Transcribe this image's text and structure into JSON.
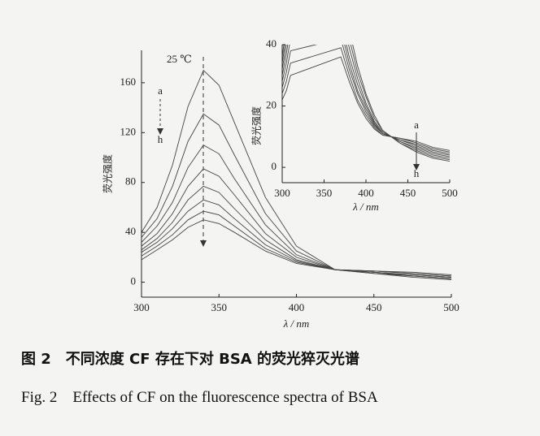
{
  "chart_data": [
    {
      "type": "line",
      "x_label": "λ / nm",
      "y_label": "荧光强度",
      "annotations": [
        "25 ℃",
        "a",
        "h"
      ],
      "x": [
        300,
        310,
        320,
        330,
        340,
        350,
        360,
        380,
        400,
        425,
        450,
        475,
        500
      ],
      "xlim": [
        300,
        500
      ],
      "xticks": [
        300,
        350,
        400,
        450,
        500
      ],
      "ylim": [
        -12,
        186
      ],
      "yticks": [
        0,
        40,
        80,
        120,
        160
      ],
      "series": [
        {
          "color": "#444",
          "values": [
            40,
            60,
            94,
            141,
            170,
            158,
            128,
            68,
            29,
            10,
            7,
            4,
            2
          ]
        },
        {
          "color": "#444",
          "values": [
            36,
            51,
            77,
            113,
            135,
            126,
            102,
            55,
            25,
            10,
            7,
            5,
            3
          ]
        },
        {
          "color": "#444",
          "values": [
            32,
            45,
            64,
            92,
            110,
            103,
            83,
            46,
            22,
            10,
            8,
            5,
            3
          ]
        },
        {
          "color": "#444",
          "values": [
            29,
            39,
            55,
            77,
            91,
            85,
            70,
            39,
            20,
            10,
            8,
            6,
            4
          ]
        },
        {
          "color": "#444",
          "values": [
            26,
            35,
            48,
            66,
            77,
            72,
            59,
            34,
            18,
            10,
            8,
            6,
            4
          ]
        },
        {
          "color": "#444",
          "values": [
            24,
            32,
            43,
            57,
            66,
            62,
            51,
            30,
            17,
            10,
            9,
            7,
            5
          ]
        },
        {
          "color": "#444",
          "values": [
            21,
            29,
            38,
            50,
            57,
            54,
            45,
            27,
            16,
            10,
            9,
            7,
            5
          ]
        },
        {
          "color": "#444",
          "values": [
            18,
            26,
            34,
            44,
            50,
            47,
            40,
            25,
            15,
            10,
            9,
            8,
            6
          ]
        }
      ]
    },
    {
      "type": "line",
      "x_label": "λ / nm",
      "y_label": "荧光强度",
      "annotations": [
        "a",
        "h"
      ],
      "x": [
        300,
        305,
        310,
        370,
        380,
        390,
        400,
        410,
        420,
        430,
        440,
        460,
        480,
        500
      ],
      "xlim": [
        300,
        500
      ],
      "xticks": [
        300,
        350,
        400,
        450,
        500
      ],
      "ylim": [
        -5,
        40
      ],
      "yticks": [
        0,
        20,
        40
      ],
      "series": [
        {
          "color": "#444",
          "values": [
            36,
            46,
            58,
            60,
            45,
            33,
            24,
            17,
            12,
            10,
            8,
            5,
            3,
            2
          ]
        },
        {
          "color": "#444",
          "values": [
            34,
            43,
            54,
            56,
            42,
            31,
            23,
            16,
            12,
            10,
            8,
            5.5,
            3.5,
            2.5
          ]
        },
        {
          "color": "#444",
          "values": [
            32,
            40,
            50,
            52,
            39,
            29,
            21,
            15,
            11.5,
            10,
            8.5,
            6,
            4,
            3
          ]
        },
        {
          "color": "#444",
          "values": [
            30,
            37,
            46,
            48,
            36,
            27,
            20,
            14.5,
            11,
            10,
            8.5,
            6.5,
            4.5,
            3.5
          ]
        },
        {
          "color": "#444",
          "values": [
            28,
            34,
            42,
            45,
            34,
            25,
            19,
            14,
            11,
            10,
            9,
            7,
            5,
            4
          ]
        },
        {
          "color": "#444",
          "values": [
            26,
            31,
            38,
            42,
            32,
            24,
            18,
            13.5,
            11,
            10,
            9,
            7.5,
            5.5,
            4.5
          ]
        },
        {
          "color": "#444",
          "values": [
            24,
            28,
            34,
            39,
            30,
            22,
            17,
            13,
            10.5,
            10,
            9.5,
            8,
            6,
            5
          ]
        },
        {
          "color": "#444",
          "values": [
            22,
            25,
            30,
            36,
            28,
            21,
            16,
            12.5,
            10.5,
            10,
            9.5,
            8.5,
            6.5,
            5.5
          ]
        }
      ]
    }
  ],
  "caption": {
    "zh": "图 2　不同浓度 CF 存在下对 BSA 的荧光猝灭光谱",
    "en": "Fig. 2　Effects of CF on the fluorescence spectra of BSA"
  }
}
